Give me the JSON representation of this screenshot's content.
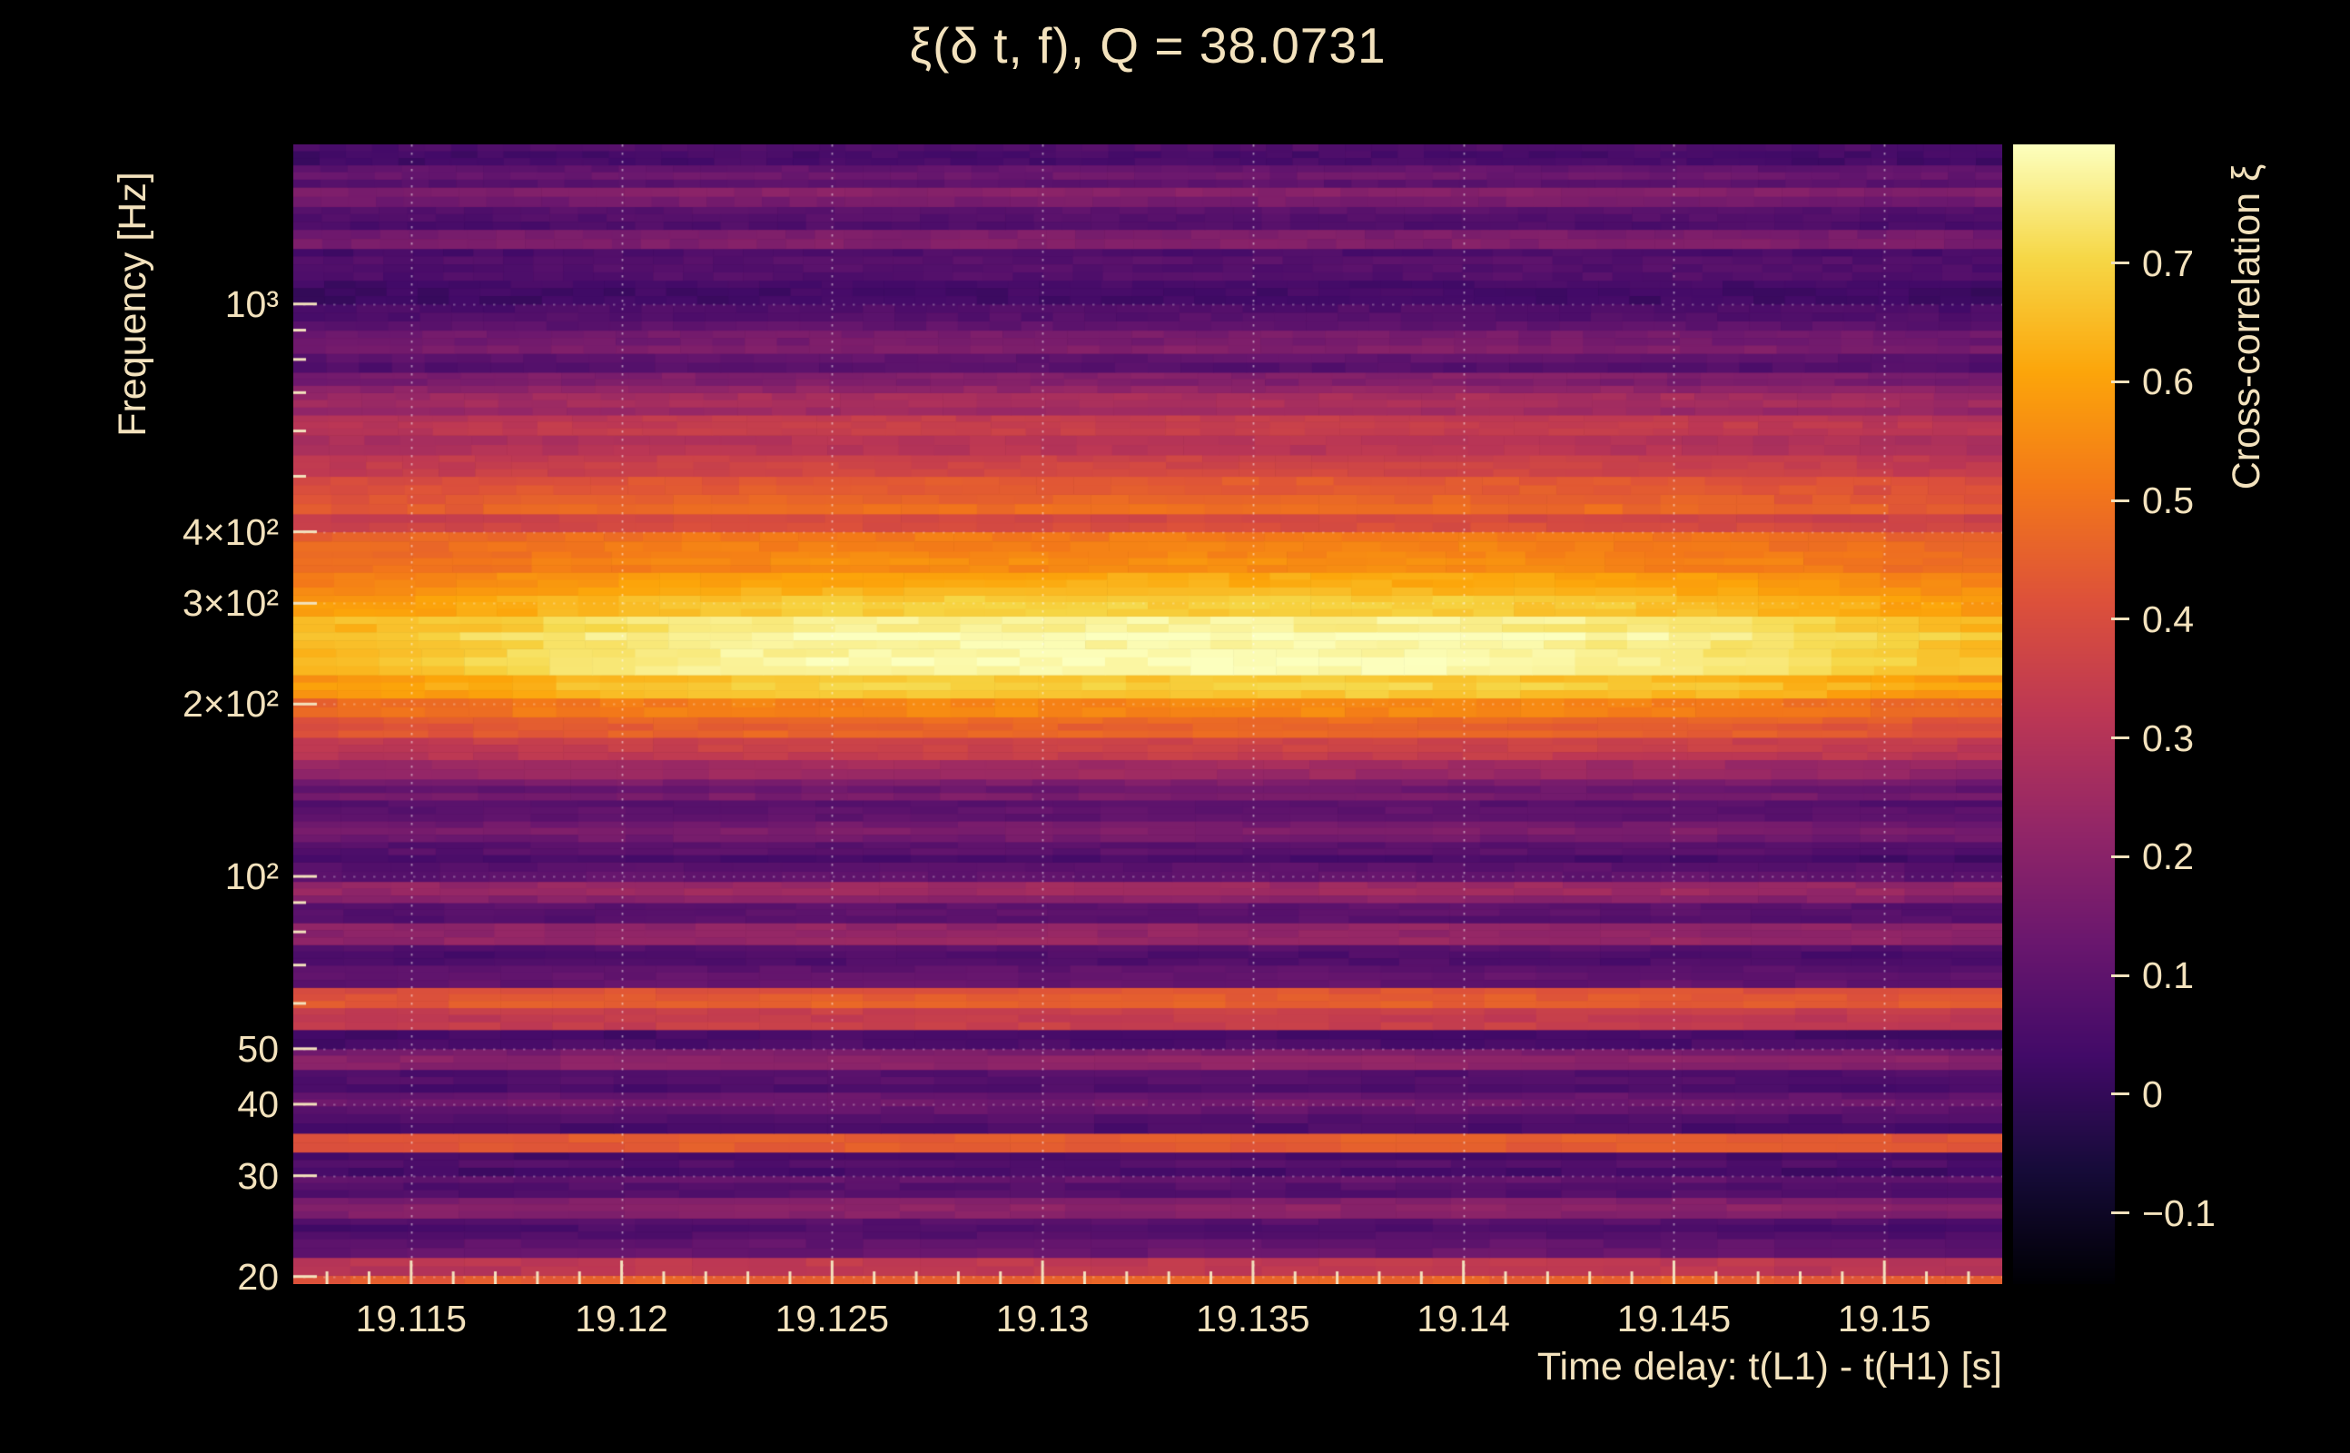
{
  "colors": {
    "background": "#000000",
    "text": "#f3e2bd",
    "grid": "#ffffff",
    "tick": "#f3e2bd"
  },
  "chart_data": {
    "type": "heatmap",
    "title": "ξ(δ t, f), Q = 38.0731",
    "xlabel": "Time delay: t(L1) - t(H1) [s]",
    "ylabel": "Frequency [Hz]",
    "colorbar_label": "Cross-correlation ξ",
    "x_range": [
      19.1122,
      19.1528
    ],
    "x_minor_step": 0.001,
    "x_ticks": [
      {
        "value": 19.115,
        "label": "19.115"
      },
      {
        "value": 19.12,
        "label": "19.12"
      },
      {
        "value": 19.125,
        "label": "19.125"
      },
      {
        "value": 19.13,
        "label": "19.13"
      },
      {
        "value": 19.135,
        "label": "19.135"
      },
      {
        "value": 19.14,
        "label": "19.14"
      },
      {
        "value": 19.145,
        "label": "19.145"
      },
      {
        "value": 19.15,
        "label": "19.15"
      }
    ],
    "y_scale": "log",
    "y_range": [
      19.4,
      1900
    ],
    "y_ticks": [
      {
        "value": 1000,
        "label": "10³"
      },
      {
        "value": 400,
        "label": "4×10²"
      },
      {
        "value": 300,
        "label": "3×10²"
      },
      {
        "value": 200,
        "label": "2×10²"
      },
      {
        "value": 100,
        "label": "10²"
      },
      {
        "value": 50,
        "label": "50"
      },
      {
        "value": 40,
        "label": "40"
      },
      {
        "value": 30,
        "label": "30"
      },
      {
        "value": 20,
        "label": "20"
      }
    ],
    "colorbar": {
      "range": [
        -0.16,
        0.8
      ],
      "ticks": [
        {
          "value": 0.7,
          "label": "0.7"
        },
        {
          "value": 0.6,
          "label": "0.6"
        },
        {
          "value": 0.5,
          "label": "0.5"
        },
        {
          "value": 0.4,
          "label": "0.4"
        },
        {
          "value": 0.3,
          "label": "0.3"
        },
        {
          "value": 0.2,
          "label": "0.2"
        },
        {
          "value": 0.1,
          "label": "0.1"
        },
        {
          "value": 0,
          "label": "0"
        },
        {
          "value": -0.1,
          "label": "−0.1"
        }
      ]
    },
    "peak": {
      "time_center": 19.133,
      "time_width": 0.017,
      "freq_center": 245,
      "max_value": 0.78
    },
    "colormap": [
      [
        0.0,
        0,
        0,
        4
      ],
      [
        0.1,
        22,
        11,
        57
      ],
      [
        0.2,
        66,
        10,
        104
      ],
      [
        0.3,
        106,
        23,
        110
      ],
      [
        0.4,
        147,
        38,
        103
      ],
      [
        0.5,
        188,
        55,
        84
      ],
      [
        0.6,
        221,
        81,
        58
      ],
      [
        0.7,
        243,
        120,
        25
      ],
      [
        0.8,
        252,
        165,
        10
      ],
      [
        0.9,
        246,
        215,
        70
      ],
      [
        1.0,
        252,
        255,
        190
      ]
    ],
    "band_fields": [
      "f_low_hz",
      "f_high_hz",
      "xi_base",
      "xi_peak_boost"
    ],
    "bands": [
      [
        19.4,
        20.1,
        0.44,
        0.03
      ],
      [
        20.1,
        21.6,
        0.28,
        0.03
      ],
      [
        21.6,
        23.3,
        0.1,
        0.02
      ],
      [
        23.3,
        25.3,
        0.04,
        0.02
      ],
      [
        25.3,
        27.5,
        0.17,
        0.02
      ],
      [
        27.5,
        30,
        0.08,
        0.02
      ],
      [
        30,
        33,
        0.04,
        0.02
      ],
      [
        33,
        35.6,
        0.4,
        0.03
      ],
      [
        35.6,
        38.5,
        0.05,
        0.02
      ],
      [
        38.5,
        42,
        0.12,
        0.02
      ],
      [
        42,
        46,
        0.04,
        0.02
      ],
      [
        46,
        50,
        0.17,
        0.02
      ],
      [
        50,
        54,
        0.05,
        0.02
      ],
      [
        54,
        59,
        0.32,
        0.03
      ],
      [
        59,
        64,
        0.4,
        0.03
      ],
      [
        64,
        70,
        0.1,
        0.02
      ],
      [
        70,
        76,
        0.05,
        0.02
      ],
      [
        76,
        83,
        0.2,
        0.02
      ],
      [
        83,
        90,
        0.06,
        0.02
      ],
      [
        90,
        98,
        0.2,
        0.03
      ],
      [
        98,
        106,
        0.1,
        0.02
      ],
      [
        106,
        115,
        0.05,
        0.02
      ],
      [
        115,
        125,
        0.15,
        0.02
      ],
      [
        125,
        136,
        0.06,
        0.02
      ],
      [
        136,
        148,
        0.12,
        0.03
      ],
      [
        148,
        160,
        0.22,
        0.04
      ],
      [
        160,
        175,
        0.32,
        0.05
      ],
      [
        175,
        190,
        0.4,
        0.06
      ],
      [
        190,
        205,
        0.48,
        0.08
      ],
      [
        205,
        225,
        0.56,
        0.12
      ],
      [
        225,
        250,
        0.62,
        0.16
      ],
      [
        250,
        285,
        0.63,
        0.15
      ],
      [
        285,
        310,
        0.58,
        0.12
      ],
      [
        310,
        340,
        0.53,
        0.1
      ],
      [
        340,
        370,
        0.48,
        0.08
      ],
      [
        370,
        400,
        0.44,
        0.07
      ],
      [
        400,
        430,
        0.35,
        0.05
      ],
      [
        430,
        465,
        0.42,
        0.06
      ],
      [
        465,
        500,
        0.37,
        0.05
      ],
      [
        500,
        545,
        0.32,
        0.05
      ],
      [
        545,
        590,
        0.26,
        0.04
      ],
      [
        590,
        640,
        0.3,
        0.05
      ],
      [
        640,
        700,
        0.23,
        0.04
      ],
      [
        700,
        760,
        0.17,
        0.03
      ],
      [
        760,
        820,
        0.08,
        0.02
      ],
      [
        820,
        900,
        0.13,
        0.03
      ],
      [
        900,
        1000,
        0.06,
        0.02
      ],
      [
        1000,
        1100,
        0.01,
        0.02
      ],
      [
        1100,
        1250,
        0.05,
        0.02
      ],
      [
        1250,
        1350,
        0.13,
        0.03
      ],
      [
        1350,
        1480,
        0.05,
        0.02
      ],
      [
        1480,
        1600,
        0.15,
        0.03
      ],
      [
        1600,
        1750,
        0.09,
        0.02
      ],
      [
        1750,
        1900,
        0.03,
        0.02
      ]
    ]
  }
}
